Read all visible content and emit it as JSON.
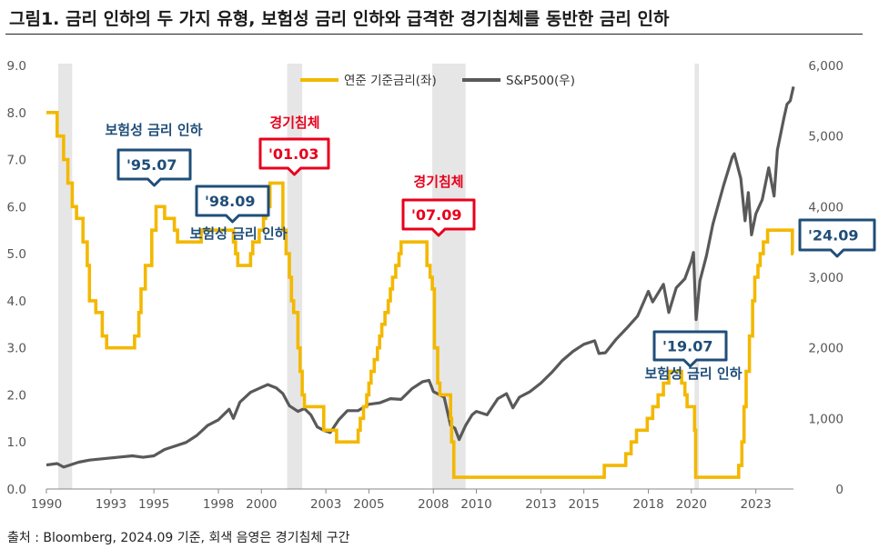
{
  "title": "그림1. 금리 인하의 두 가지 유형, 보험성 금리 인하와 급격한 경기침체를 동반한 금리 인하",
  "source": "출처 : Bloomberg, 2024.09 기준, 회색 음영은 경기침체 구간",
  "colors": {
    "rate": "#f3b800",
    "spx": "#595959",
    "recession": "#e6e6e6",
    "insurance": "#1f4e79",
    "recessionCut": "#e8001c"
  },
  "chart_data": {
    "type": "line",
    "title": "그림1. 금리 인하의 두 가지 유형, 보험성 금리 인하와 급격한 경기침체를 동반한 금리 인하",
    "xlabel": "",
    "ylabel_left": "",
    "ylabel_right": "",
    "xlim": [
      1990.0,
      2024.75
    ],
    "ylim_left": [
      0,
      9
    ],
    "ylim_right": [
      0,
      6000
    ],
    "x_ticks": [
      1990,
      1993,
      1995,
      1998,
      2000,
      2003,
      2005,
      2008,
      2010,
      2013,
      2015,
      2018,
      2020,
      2023
    ],
    "y_ticks_left": [
      "0.0",
      "1.0",
      "2.0",
      "3.0",
      "4.0",
      "5.0",
      "6.0",
      "7.0",
      "8.0",
      "9.0"
    ],
    "y_ticks_right": [
      "0",
      "1,000",
      "2,000",
      "3,000",
      "4,000",
      "5,000",
      "6,000"
    ],
    "legend": {
      "position": "top-center",
      "entries": [
        "연준 기준금리(좌)",
        "S&P500(우)"
      ]
    },
    "recessions": [
      [
        1990.55,
        1991.2
      ],
      [
        2001.2,
        2001.9
      ],
      [
        2007.95,
        2009.5
      ],
      [
        2020.15,
        2020.35
      ]
    ],
    "series": [
      {
        "name": "연준 기준금리(좌)",
        "axis": "left",
        "type": "step",
        "points": [
          [
            1990.0,
            8.0
          ],
          [
            1990.5,
            7.5
          ],
          [
            1990.8,
            7.0
          ],
          [
            1991.0,
            6.5
          ],
          [
            1991.2,
            6.0
          ],
          [
            1991.4,
            5.75
          ],
          [
            1991.7,
            5.25
          ],
          [
            1991.9,
            4.75
          ],
          [
            1992.0,
            4.0
          ],
          [
            1992.3,
            3.75
          ],
          [
            1992.6,
            3.25
          ],
          [
            1992.8,
            3.0
          ],
          [
            1994.1,
            3.25
          ],
          [
            1994.3,
            3.75
          ],
          [
            1994.4,
            4.25
          ],
          [
            1994.6,
            4.75
          ],
          [
            1994.9,
            5.5
          ],
          [
            1995.1,
            6.0
          ],
          [
            1995.5,
            5.75
          ],
          [
            1995.95,
            5.5
          ],
          [
            1996.1,
            5.25
          ],
          [
            1997.2,
            5.5
          ],
          [
            1998.7,
            5.25
          ],
          [
            1998.8,
            5.0
          ],
          [
            1998.9,
            4.75
          ],
          [
            1999.5,
            5.0
          ],
          [
            1999.6,
            5.25
          ],
          [
            1999.9,
            5.5
          ],
          [
            2000.1,
            5.75
          ],
          [
            2000.2,
            6.0
          ],
          [
            2000.4,
            6.5
          ],
          [
            2001.0,
            5.5
          ],
          [
            2001.15,
            5.0
          ],
          [
            2001.3,
            4.5
          ],
          [
            2001.4,
            4.0
          ],
          [
            2001.5,
            3.75
          ],
          [
            2001.7,
            3.0
          ],
          [
            2001.8,
            2.5
          ],
          [
            2001.9,
            2.0
          ],
          [
            2002.0,
            1.75
          ],
          [
            2002.9,
            1.25
          ],
          [
            2003.5,
            1.0
          ],
          [
            2004.5,
            1.25
          ],
          [
            2004.6,
            1.5
          ],
          [
            2004.75,
            1.75
          ],
          [
            2004.9,
            2.0
          ],
          [
            2005.0,
            2.25
          ],
          [
            2005.1,
            2.5
          ],
          [
            2005.25,
            2.75
          ],
          [
            2005.4,
            3.0
          ],
          [
            2005.5,
            3.25
          ],
          [
            2005.6,
            3.5
          ],
          [
            2005.75,
            3.75
          ],
          [
            2005.9,
            4.0
          ],
          [
            2006.0,
            4.25
          ],
          [
            2006.1,
            4.5
          ],
          [
            2006.25,
            4.75
          ],
          [
            2006.4,
            5.0
          ],
          [
            2006.5,
            5.25
          ],
          [
            2007.7,
            4.75
          ],
          [
            2007.85,
            4.5
          ],
          [
            2007.95,
            4.25
          ],
          [
            2008.05,
            3.0
          ],
          [
            2008.2,
            2.25
          ],
          [
            2008.3,
            2.0
          ],
          [
            2008.8,
            1.5
          ],
          [
            2008.85,
            1.0
          ],
          [
            2008.95,
            0.25
          ],
          [
            2015.95,
            0.5
          ],
          [
            2016.95,
            0.75
          ],
          [
            2017.2,
            1.0
          ],
          [
            2017.45,
            1.25
          ],
          [
            2017.95,
            1.5
          ],
          [
            2018.2,
            1.75
          ],
          [
            2018.45,
            2.0
          ],
          [
            2018.7,
            2.25
          ],
          [
            2018.95,
            2.5
          ],
          [
            2019.55,
            2.25
          ],
          [
            2019.7,
            2.0
          ],
          [
            2019.8,
            1.75
          ],
          [
            2020.15,
            1.25
          ],
          [
            2020.2,
            0.25
          ],
          [
            2022.2,
            0.5
          ],
          [
            2022.35,
            1.0
          ],
          [
            2022.45,
            1.75
          ],
          [
            2022.55,
            2.5
          ],
          [
            2022.7,
            3.25
          ],
          [
            2022.85,
            4.0
          ],
          [
            2022.95,
            4.5
          ],
          [
            2023.1,
            4.75
          ],
          [
            2023.2,
            5.0
          ],
          [
            2023.35,
            5.25
          ],
          [
            2023.55,
            5.5
          ],
          [
            2024.7,
            5.0
          ],
          [
            2024.75,
            5.0
          ]
        ]
      },
      {
        "name": "S&P500(우)",
        "axis": "right",
        "type": "line",
        "points": [
          [
            1990.0,
            340
          ],
          [
            1990.5,
            360
          ],
          [
            1990.8,
            310
          ],
          [
            1991.0,
            330
          ],
          [
            1991.5,
            380
          ],
          [
            1992.0,
            410
          ],
          [
            1993.0,
            440
          ],
          [
            1994.0,
            470
          ],
          [
            1994.5,
            450
          ],
          [
            1995.0,
            470
          ],
          [
            1995.5,
            560
          ],
          [
            1996.0,
            610
          ],
          [
            1996.5,
            660
          ],
          [
            1997.0,
            760
          ],
          [
            1997.5,
            900
          ],
          [
            1998.0,
            980
          ],
          [
            1998.5,
            1130
          ],
          [
            1998.7,
            1000
          ],
          [
            1999.0,
            1230
          ],
          [
            1999.5,
            1370
          ],
          [
            2000.0,
            1440
          ],
          [
            2000.3,
            1480
          ],
          [
            2000.7,
            1430
          ],
          [
            2001.0,
            1350
          ],
          [
            2001.3,
            1180
          ],
          [
            2001.7,
            1100
          ],
          [
            2002.0,
            1140
          ],
          [
            2002.3,
            1050
          ],
          [
            2002.6,
            880
          ],
          [
            2002.9,
            830
          ],
          [
            2003.2,
            800
          ],
          [
            2003.6,
            980
          ],
          [
            2004.0,
            1110
          ],
          [
            2004.5,
            1110
          ],
          [
            2005.0,
            1200
          ],
          [
            2005.5,
            1220
          ],
          [
            2006.0,
            1280
          ],
          [
            2006.5,
            1270
          ],
          [
            2007.0,
            1420
          ],
          [
            2007.5,
            1520
          ],
          [
            2007.8,
            1540
          ],
          [
            2008.0,
            1380
          ],
          [
            2008.5,
            1300
          ],
          [
            2008.8,
            900
          ],
          [
            2009.0,
            860
          ],
          [
            2009.2,
            700
          ],
          [
            2009.5,
            900
          ],
          [
            2009.8,
            1050
          ],
          [
            2010.0,
            1100
          ],
          [
            2010.5,
            1050
          ],
          [
            2011.0,
            1280
          ],
          [
            2011.4,
            1350
          ],
          [
            2011.7,
            1150
          ],
          [
            2012.0,
            1300
          ],
          [
            2012.5,
            1380
          ],
          [
            2013.0,
            1500
          ],
          [
            2013.5,
            1650
          ],
          [
            2014.0,
            1820
          ],
          [
            2014.5,
            1950
          ],
          [
            2015.0,
            2050
          ],
          [
            2015.5,
            2100
          ],
          [
            2015.7,
            1920
          ],
          [
            2016.0,
            1930
          ],
          [
            2016.5,
            2120
          ],
          [
            2017.0,
            2280
          ],
          [
            2017.5,
            2450
          ],
          [
            2018.0,
            2800
          ],
          [
            2018.2,
            2650
          ],
          [
            2018.7,
            2900
          ],
          [
            2018.95,
            2500
          ],
          [
            2019.3,
            2850
          ],
          [
            2019.7,
            2980
          ],
          [
            2020.0,
            3230
          ],
          [
            2020.1,
            3350
          ],
          [
            2020.22,
            2400
          ],
          [
            2020.4,
            2950
          ],
          [
            2020.7,
            3300
          ],
          [
            2021.0,
            3750
          ],
          [
            2021.5,
            4300
          ],
          [
            2021.9,
            4700
          ],
          [
            2022.0,
            4750
          ],
          [
            2022.3,
            4400
          ],
          [
            2022.5,
            3800
          ],
          [
            2022.65,
            4200
          ],
          [
            2022.8,
            3600
          ],
          [
            2023.0,
            3900
          ],
          [
            2023.3,
            4100
          ],
          [
            2023.6,
            4550
          ],
          [
            2023.85,
            4150
          ],
          [
            2024.0,
            4800
          ],
          [
            2024.3,
            5250
          ],
          [
            2024.45,
            5450
          ],
          [
            2024.6,
            5500
          ],
          [
            2024.75,
            5700
          ]
        ]
      }
    ],
    "annotations": [
      {
        "label": "보험성 금리 인하",
        "box": "'95.07",
        "type": "insurance"
      },
      {
        "label": "보험성 금리 인하",
        "box": "'98.09",
        "type": "insurance"
      },
      {
        "label": "경기침체",
        "box": "'01.03",
        "type": "recession"
      },
      {
        "label": "경기침체",
        "box": "'07.09",
        "type": "recession"
      },
      {
        "label": "보험성 금리 인하",
        "box": "'19.07",
        "type": "insurance"
      },
      {
        "label": "",
        "box": "'24.09",
        "type": "insurance"
      }
    ]
  }
}
